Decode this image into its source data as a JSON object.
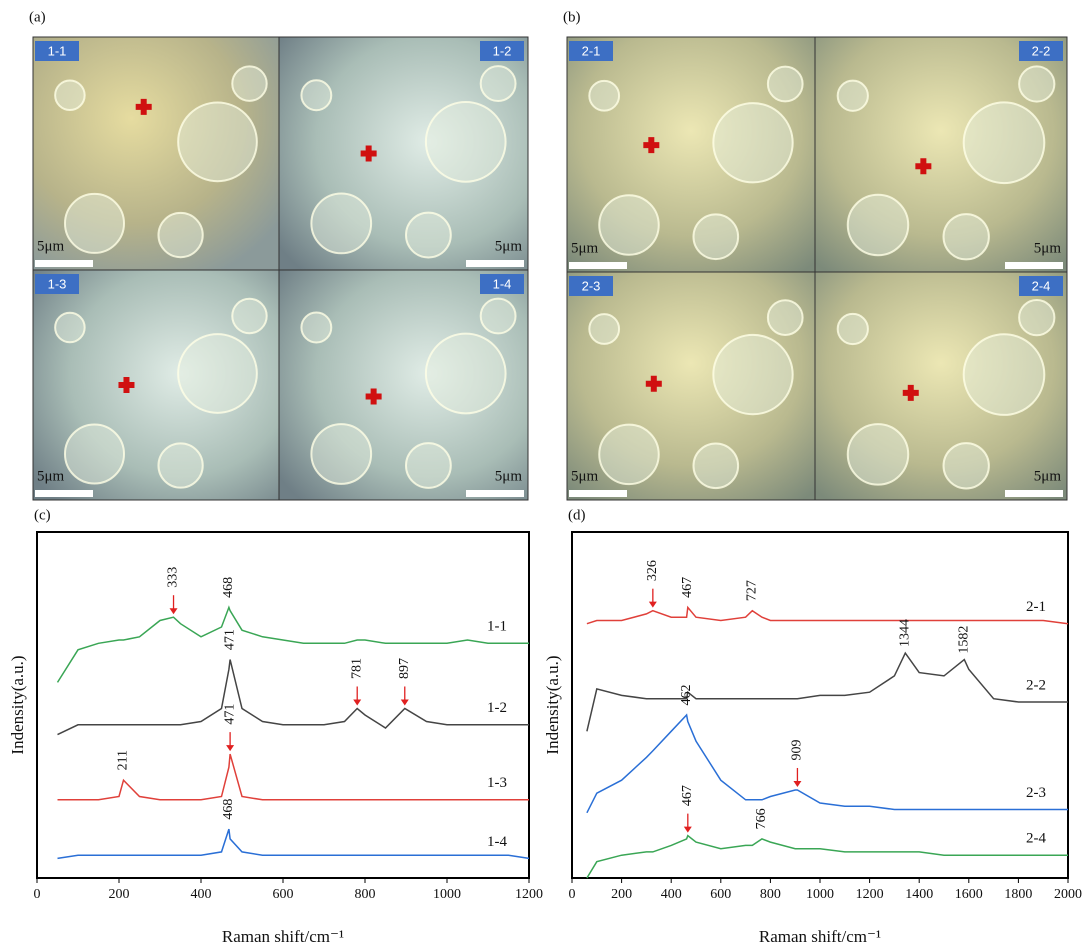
{
  "panels": [
    {
      "label": "(a)",
      "images": [
        {
          "tag": "1-1",
          "scale": "5μm"
        },
        {
          "tag": "1-2",
          "scale": "5μm"
        },
        {
          "tag": "1-3",
          "scale": "5μm"
        },
        {
          "tag": "1-4",
          "scale": "5μm"
        }
      ]
    },
    {
      "label": "(b)",
      "images": [
        {
          "tag": "2-1",
          "scale": "5μm"
        },
        {
          "tag": "2-2",
          "scale": "5μm"
        },
        {
          "tag": "2-3",
          "scale": "5μm"
        },
        {
          "tag": "2-4",
          "scale": "5μm"
        }
      ]
    }
  ],
  "chart_data": [
    {
      "type": "line",
      "label": "(c)",
      "x_label": "Raman shift/cm⁻¹",
      "y_label": "Indensity(a.u.)",
      "xlim": [
        0,
        1200
      ],
      "xticks": [
        0,
        200,
        400,
        600,
        800,
        1000,
        1200
      ],
      "ylim": [
        0,
        100
      ],
      "x": [
        50,
        100,
        150,
        200,
        211,
        250,
        300,
        333,
        350,
        400,
        450,
        468,
        471,
        500,
        550,
        600,
        650,
        700,
        750,
        781,
        800,
        850,
        897,
        950,
        1000,
        1050,
        1100,
        1150,
        1200
      ],
      "series": [
        {
          "name": "1-1",
          "color": "#3aa655",
          "values": [
            60,
            70,
            72,
            73,
            73,
            74,
            79,
            80,
            78,
            74,
            77,
            83,
            82,
            76,
            74,
            73,
            72,
            72,
            72,
            73,
            73,
            72,
            72,
            72,
            72,
            73,
            72,
            72,
            72
          ]
        },
        {
          "name": "1-2",
          "color": "#454545",
          "values": [
            44,
            47,
            47,
            47,
            47,
            47,
            47,
            47,
            47,
            48,
            52,
            64,
            67,
            52,
            48,
            47,
            47,
            47,
            48,
            52,
            50,
            46,
            52,
            48,
            47,
            47,
            47,
            47,
            47
          ]
        },
        {
          "name": "1-3",
          "color": "#e0403a",
          "values": [
            24,
            24,
            24,
            25,
            30,
            25,
            24,
            24,
            24,
            24,
            25,
            34,
            38,
            25,
            24,
            24,
            24,
            24,
            24,
            24,
            24,
            24,
            24,
            24,
            24,
            24,
            24,
            24,
            24
          ]
        },
        {
          "name": "1-4",
          "color": "#2a6fd6",
          "values": [
            6,
            7,
            7,
            7,
            7,
            7,
            7,
            7,
            7,
            7,
            8,
            15,
            12,
            8,
            7,
            7,
            7,
            7,
            7,
            7,
            7,
            7,
            7,
            7,
            7,
            7,
            7,
            7,
            6
          ]
        }
      ],
      "annotations": [
        {
          "x": 333,
          "label": "333",
          "series": 0,
          "arrow": true
        },
        {
          "x": 468,
          "label": "468",
          "series": 0,
          "arrow": false
        },
        {
          "x": 471,
          "label": "471",
          "series": 1,
          "arrow": false
        },
        {
          "x": 781,
          "label": "781",
          "series": 1,
          "arrow": true
        },
        {
          "x": 897,
          "label": "897",
          "series": 1,
          "arrow": true
        },
        {
          "x": 211,
          "label": "211",
          "series": 2,
          "arrow": false
        },
        {
          "x": 471,
          "label": "471",
          "series": 2,
          "arrow": true
        },
        {
          "x": 468,
          "label": "468",
          "series": 3,
          "arrow": false
        }
      ]
    },
    {
      "type": "line",
      "label": "(d)",
      "x_label": "Raman shift/cm⁻¹",
      "y_label": "Indensity(a.u.)",
      "xlim": [
        0,
        2000
      ],
      "xticks": [
        0,
        200,
        400,
        600,
        800,
        1000,
        1200,
        1400,
        1600,
        1800,
        2000
      ],
      "ylim": [
        0,
        100
      ],
      "x": [
        60,
        100,
        200,
        300,
        326,
        400,
        462,
        467,
        500,
        600,
        700,
        727,
        766,
        800,
        900,
        909,
        1000,
        1100,
        1200,
        1300,
        1344,
        1400,
        1500,
        1582,
        1600,
        1700,
        1800,
        1900,
        2000
      ],
      "series": [
        {
          "name": "2-1",
          "color": "#e0403a",
          "values": [
            78,
            79,
            79,
            81,
            82,
            80,
            80,
            83,
            80,
            79,
            80,
            82,
            80,
            79,
            79,
            79,
            79,
            79,
            79,
            79,
            79,
            79,
            79,
            79,
            79,
            79,
            79,
            79,
            78
          ]
        },
        {
          "name": "2-2",
          "color": "#454545",
          "values": [
            45,
            58,
            56,
            55,
            55,
            55,
            55,
            57,
            55,
            55,
            55,
            55,
            55,
            55,
            55,
            55,
            56,
            56,
            57,
            62,
            69,
            63,
            62,
            67,
            64,
            55,
            54,
            54,
            54
          ]
        },
        {
          "name": "2-3",
          "color": "#2a6fd6",
          "values": [
            20,
            26,
            30,
            37,
            39,
            45,
            50,
            48,
            42,
            30,
            24,
            24,
            24,
            25,
            27,
            27,
            23,
            22,
            22,
            21,
            21,
            21,
            21,
            21,
            21,
            21,
            21,
            21,
            21
          ]
        },
        {
          "name": "2-4",
          "color": "#3aa655",
          "values": [
            0,
            5,
            7,
            8,
            8,
            10,
            12,
            13,
            11,
            9,
            10,
            10,
            12,
            11,
            9,
            9,
            9,
            8,
            8,
            8,
            8,
            8,
            7,
            7,
            7,
            7,
            7,
            7,
            7
          ]
        }
      ],
      "annotations": [
        {
          "x": 326,
          "label": "326",
          "series": 0,
          "arrow": true
        },
        {
          "x": 467,
          "label": "467",
          "series": 0,
          "arrow": false
        },
        {
          "x": 727,
          "label": "727",
          "series": 0,
          "arrow": false
        },
        {
          "x": 1344,
          "label": "1344",
          "series": 1,
          "arrow": false
        },
        {
          "x": 1582,
          "label": "1582",
          "series": 1,
          "arrow": false
        },
        {
          "x": 462,
          "label": "462",
          "series": 2,
          "arrow": false
        },
        {
          "x": 909,
          "label": "909",
          "series": 2,
          "arrow": true
        },
        {
          "x": 467,
          "label": "467",
          "series": 3,
          "arrow": true
        },
        {
          "x": 766,
          "label": "766",
          "series": 3,
          "arrow": false
        }
      ]
    }
  ]
}
